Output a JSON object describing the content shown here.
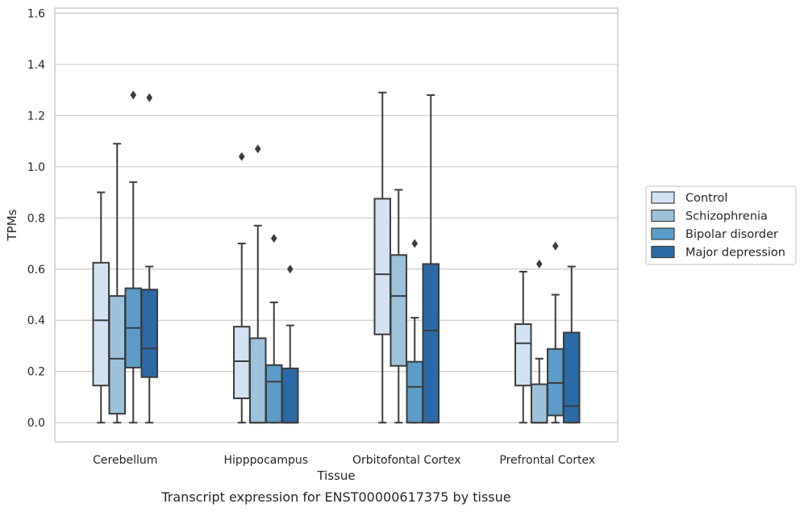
{
  "chart_data": {
    "type": "box",
    "caption": "Transcript expression for ENST00000617375 by tissue",
    "xlabel": "Tissue",
    "ylabel": "TPMs",
    "ylim": [
      -0.075,
      1.62
    ],
    "yticks": [
      "0.0",
      "0.2",
      "0.4",
      "0.6",
      "0.8",
      "1.0",
      "1.2",
      "1.4",
      "1.6"
    ],
    "grid": true,
    "legend_position": "right",
    "categories": [
      "Cerebellum",
      "Hipppocampus",
      "Orbitofontal Cortex",
      "Prefrontal Cortex"
    ],
    "series": [
      {
        "name": "Control",
        "color": "#d2e2f3",
        "boxes": [
          {
            "whisker_low": 0.0,
            "q1": 0.145,
            "median": 0.4,
            "q3": 0.625,
            "whisker_high": 0.9,
            "outliers": []
          },
          {
            "whisker_low": 0.0,
            "q1": 0.095,
            "median": 0.24,
            "q3": 0.375,
            "whisker_high": 0.7,
            "outliers": [
              1.04
            ]
          },
          {
            "whisker_low": 0.0,
            "q1": 0.345,
            "median": 0.58,
            "q3": 0.875,
            "whisker_high": 1.29,
            "outliers": []
          },
          {
            "whisker_low": 0.0,
            "q1": 0.145,
            "median": 0.31,
            "q3": 0.385,
            "whisker_high": 0.59,
            "outliers": []
          }
        ]
      },
      {
        "name": "Schizophrenia",
        "color": "#9dc3dc",
        "boxes": [
          {
            "whisker_low": 0.0,
            "q1": 0.035,
            "median": 0.25,
            "q3": 0.495,
            "whisker_high": 1.09,
            "outliers": []
          },
          {
            "whisker_low": 0.0,
            "q1": 0.0,
            "median": 0.0,
            "q3": 0.33,
            "whisker_high": 0.77,
            "outliers": [
              1.07
            ]
          },
          {
            "whisker_low": 0.0,
            "q1": 0.222,
            "median": 0.495,
            "q3": 0.655,
            "whisker_high": 0.91,
            "outliers": []
          },
          {
            "whisker_low": 0.0,
            "q1": 0.0,
            "median": 0.0,
            "q3": 0.15,
            "whisker_high": 0.25,
            "outliers": [
              0.62
            ]
          }
        ]
      },
      {
        "name": "Bipolar disorder",
        "color": "#5b9cc8",
        "boxes": [
          {
            "whisker_low": 0.0,
            "q1": 0.215,
            "median": 0.37,
            "q3": 0.525,
            "whisker_high": 0.94,
            "outliers": [
              1.28
            ]
          },
          {
            "whisker_low": 0.0,
            "q1": 0.0,
            "median": 0.16,
            "q3": 0.225,
            "whisker_high": 0.47,
            "outliers": [
              0.72
            ]
          },
          {
            "whisker_low": 0.0,
            "q1": 0.0,
            "median": 0.14,
            "q3": 0.238,
            "whisker_high": 0.41,
            "outliers": [
              0.7
            ]
          },
          {
            "whisker_low": 0.0,
            "q1": 0.028,
            "median": 0.155,
            "q3": 0.288,
            "whisker_high": 0.5,
            "outliers": [
              0.69
            ]
          }
        ]
      },
      {
        "name": "Major depression",
        "color": "#2b6aa6",
        "boxes": [
          {
            "whisker_low": 0.0,
            "q1": 0.178,
            "median": 0.29,
            "q3": 0.52,
            "whisker_high": 0.61,
            "outliers": [
              1.27
            ]
          },
          {
            "whisker_low": 0.0,
            "q1": 0.0,
            "median": 0.0,
            "q3": 0.212,
            "whisker_high": 0.38,
            "outliers": [
              0.6
            ]
          },
          {
            "whisker_low": 0.0,
            "q1": 0.0,
            "median": 0.36,
            "q3": 0.62,
            "whisker_high": 1.28,
            "outliers": []
          },
          {
            "whisker_low": 0.0,
            "q1": 0.0,
            "median": 0.065,
            "q3": 0.352,
            "whisker_high": 0.61,
            "outliers": []
          }
        ]
      }
    ]
  }
}
